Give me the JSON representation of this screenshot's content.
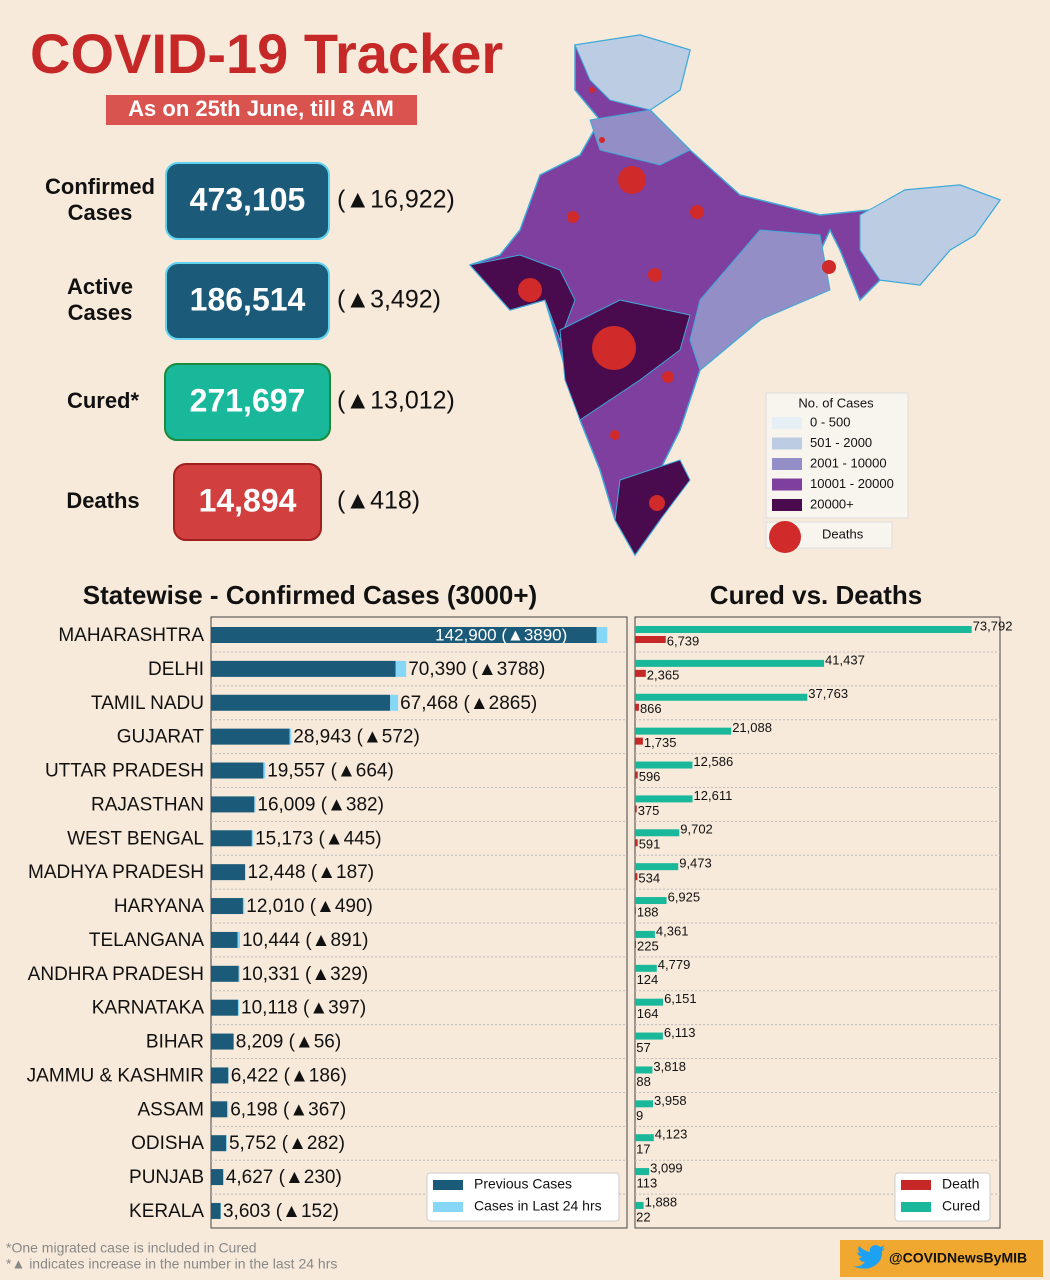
{
  "header": {
    "title": "COVID-19 Tracker",
    "subtitle": "As on 25th June, till 8 AM"
  },
  "stats": [
    {
      "label": "Confirmed Cases",
      "value": "473,105",
      "change": "(▲16,922)"
    },
    {
      "label": "Active Cases",
      "value": "186,514",
      "change": "(▲3,492)"
    },
    {
      "label": "Cured*",
      "value": "271,697",
      "change": "(▲13,012)"
    },
    {
      "label": "Deaths",
      "value": "14,894",
      "change": "(▲418)"
    }
  ],
  "map_legend": {
    "title": "No. of Cases",
    "items": [
      "0 - 500",
      "501 - 2000",
      "2001 - 10000",
      "10001 - 20000",
      "20000+"
    ],
    "colors": [
      "#e6eef6",
      "#bccde3",
      "#938fc6",
      "#7e3f9f",
      "#4a0a4e"
    ],
    "deaths": "Deaths"
  },
  "chart_data": [
    {
      "type": "stacked-hbar",
      "title": "Statewise - Confirmed Cases (3000+)",
      "categories": [
        "MAHARASHTRA",
        "DELHI",
        "TAMIL NADU",
        "GUJARAT",
        "UTTAR PRADESH",
        "RAJASTHAN",
        "WEST BENGAL",
        "MADHYA PRADESH",
        "HARYANA",
        "TELANGANA",
        "ANDHRA PRADESH",
        "KARNATAKA",
        "BIHAR",
        "JAMMU & KASHMIR",
        "ASSAM",
        "ODISHA",
        "PUNJAB",
        "KERALA"
      ],
      "xlim": [
        0,
        150000
      ],
      "series": [
        {
          "name": "Previous Cases",
          "color": "#1b5a78",
          "values": [
            139010,
            66602,
            64603,
            28371,
            18893,
            15627,
            14728,
            12261,
            11520,
            9553,
            10002,
            9721,
            8153,
            6236,
            5831,
            5470,
            4397,
            3451
          ]
        },
        {
          "name": "Cases in Last 24 hrs",
          "color": "#86d6f7",
          "values": [
            3890,
            3788,
            2865,
            572,
            664,
            382,
            445,
            187,
            490,
            891,
            329,
            397,
            56,
            186,
            367,
            282,
            230,
            152
          ],
          "value_labels": [
            "142,900 (▲3890)",
            "70,390 (▲3788)",
            "67,468 (▲2865)",
            "28,943 (▲572)",
            "19,557 (▲664)",
            "16,009 (▲382)",
            "15,173 (▲445)",
            "12,448 (▲187)",
            "12,010 (▲490)",
            "10,444 (▲891)",
            "10,331 (▲329)",
            "10,118 (▲397)",
            "8,209 (▲56)",
            "6,422 (▲186)",
            "6,198 (▲367)",
            "5,752 (▲282)",
            "4,627 (▲230)",
            "3,603 (▲152)"
          ]
        }
      ]
    },
    {
      "type": "grouped-hbar",
      "title": "Cured vs. Deaths",
      "xlim": [
        0,
        80000
      ],
      "series": [
        {
          "name": "Death",
          "color": "#c62828",
          "values": [
            6739,
            2365,
            866,
            1735,
            596,
            375,
            591,
            534,
            188,
            225,
            124,
            164,
            57,
            88,
            9,
            17,
            113,
            22
          ],
          "value_labels": [
            "6,739",
            "2,365",
            "866",
            "1,735",
            "596",
            "375",
            "591",
            "534",
            "188",
            "225",
            "124",
            "164",
            "57",
            "88",
            "9",
            "17",
            "113",
            "22"
          ]
        },
        {
          "name": "Cured",
          "color": "#1ab89b",
          "values": [
            73792,
            41437,
            37763,
            21088,
            12586,
            12611,
            9702,
            9473,
            6925,
            4361,
            4779,
            6151,
            6113,
            3818,
            3958,
            4123,
            3099,
            1888
          ],
          "value_labels": [
            "73,792",
            "41,437",
            "37,763",
            "21,088",
            "12,586",
            "12,611",
            "9,702",
            "9,473",
            "6,925",
            "4,361",
            "4,779",
            "6,151",
            "6,113",
            "3,818",
            "3,958",
            "4,123",
            "3,099",
            "1,888"
          ]
        }
      ]
    }
  ],
  "footnotes": [
    "*One migrated case is included in Cured",
    "*▲ indicates increase in the number in the last 24 hrs"
  ],
  "handle": "@COVIDNewsByMIB"
}
